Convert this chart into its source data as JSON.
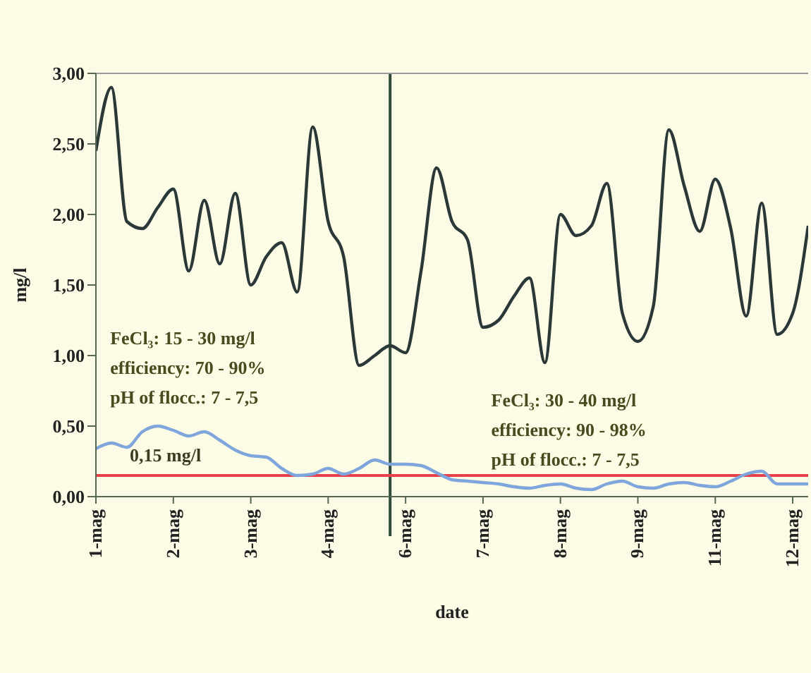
{
  "chart_data": {
    "type": "line",
    "xlabel": "date",
    "ylabel": "mg/l",
    "categories": [
      "1-mag",
      null,
      null,
      null,
      null,
      "2-mag",
      null,
      null,
      null,
      null,
      "3-mag",
      null,
      null,
      null,
      null,
      "4-mag",
      null,
      null,
      null,
      null,
      "6-mag",
      null,
      null,
      null,
      null,
      "7-mag",
      null,
      null,
      null,
      null,
      "8-mag",
      null,
      null,
      null,
      null,
      "9-mag",
      null,
      null,
      null,
      null,
      "11-mag",
      null,
      null,
      null,
      null,
      "12-mag",
      null
    ],
    "ylim": [
      0,
      3
    ],
    "yticks": [
      {
        "value": 0,
        "label": "0,00"
      },
      {
        "value": 0.5,
        "label": "0,50"
      },
      {
        "value": 1,
        "label": "1,00"
      },
      {
        "value": 1.5,
        "label": "1,50"
      },
      {
        "value": 2,
        "label": "2,00"
      },
      {
        "value": 2.5,
        "label": "2,50"
      },
      {
        "value": 3,
        "label": "3,00"
      }
    ],
    "grid": false,
    "legend": false,
    "marker": "none",
    "line_style": "solid",
    "series": [
      {
        "color": "#2b3838",
        "values": [
          2.45,
          2.9,
          1.95,
          1.9,
          2.05,
          2.18,
          1.6,
          2.1,
          1.65,
          2.15,
          1.5,
          1.7,
          1.8,
          1.45,
          2.62,
          1.95,
          1.7,
          0.93,
          1.0,
          1.07,
          1.02,
          1.6,
          2.33,
          1.95,
          1.82,
          1.2,
          1.25,
          1.42,
          1.55,
          0.95,
          2.0,
          1.85,
          1.92,
          2.22,
          1.3,
          1.1,
          1.35,
          2.6,
          2.2,
          1.88,
          2.25,
          1.9,
          1.28,
          2.08,
          1.15,
          1.3,
          1.92
        ]
      },
      {
        "color": "#7fa6dc",
        "values": [
          0.34,
          0.38,
          0.35,
          0.46,
          0.5,
          0.47,
          0.43,
          0.46,
          0.4,
          0.33,
          0.29,
          0.28,
          0.2,
          0.15,
          0.16,
          0.2,
          0.16,
          0.2,
          0.26,
          0.23,
          0.23,
          0.22,
          0.17,
          0.12,
          0.11,
          0.1,
          0.09,
          0.07,
          0.06,
          0.08,
          0.09,
          0.06,
          0.05,
          0.09,
          0.11,
          0.07,
          0.06,
          0.09,
          0.1,
          0.08,
          0.07,
          0.11,
          0.16,
          0.18,
          0.09,
          0.09,
          0.09
        ]
      }
    ],
    "ref_lines": [
      {
        "axis": "y",
        "value": 0.15,
        "label": "0,15 mg/l",
        "color": "#e8404a"
      }
    ],
    "annotations": [
      "FeCl₃: 15 - 30 mg/l\nefficiency: 70 - 90%\npH of flocc.: 7 - 7,5",
      "FeCl₃: 30 - 40 mg/l\nefficiency: 90 - 98%\npH of flocc.: 7 - 7,5"
    ]
  }
}
